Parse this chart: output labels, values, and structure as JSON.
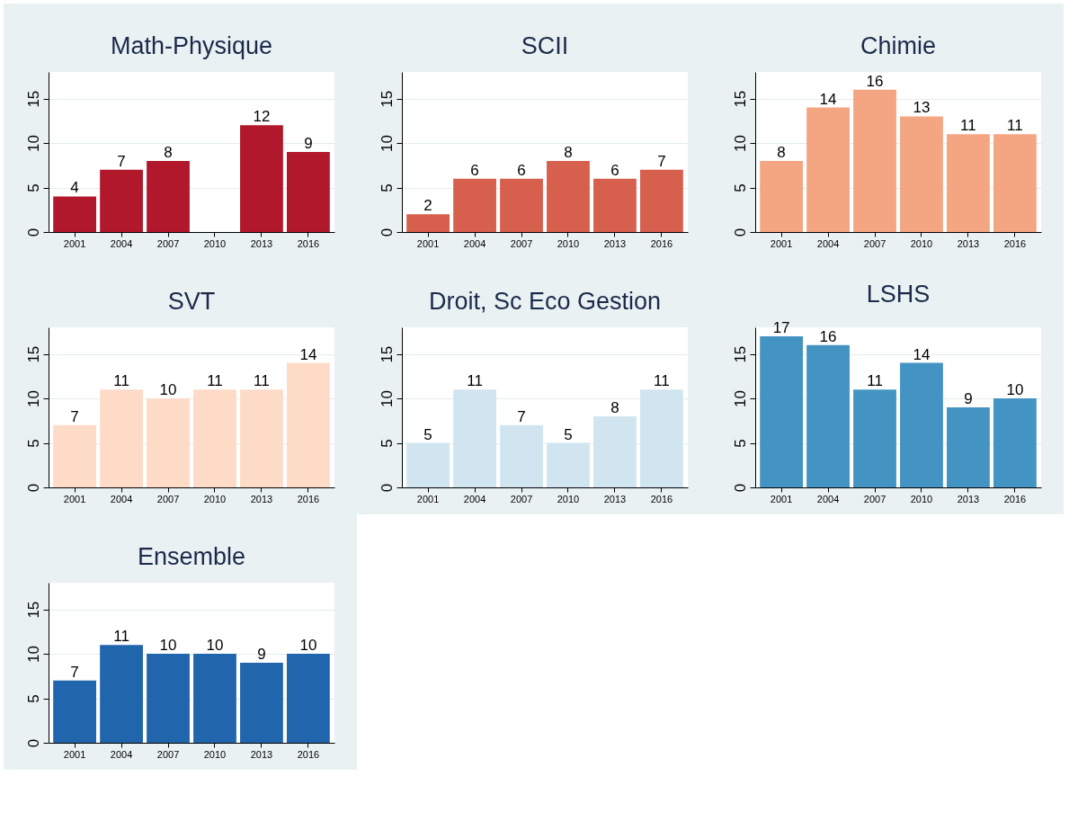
{
  "chart_data": [
    {
      "type": "bar",
      "title": "Math-Physique",
      "categories": [
        "2001",
        "2004",
        "2007",
        "2010",
        "2013",
        "2016"
      ],
      "values": [
        4,
        7,
        8,
        null,
        12,
        9
      ],
      "color": "#b2182b",
      "ylim": [
        0,
        18
      ],
      "yticks": [
        0,
        5,
        10,
        15
      ],
      "grid": "y",
      "data_labels": true
    },
    {
      "type": "bar",
      "title": "SCII",
      "categories": [
        "2001",
        "2004",
        "2007",
        "2010",
        "2013",
        "2016"
      ],
      "values": [
        2,
        6,
        6,
        8,
        6,
        7
      ],
      "color": "#d6604d",
      "ylim": [
        0,
        18
      ],
      "yticks": [
        0,
        5,
        10,
        15
      ],
      "grid": "y",
      "data_labels": true
    },
    {
      "type": "bar",
      "title": "Chimie",
      "categories": [
        "2001",
        "2004",
        "2007",
        "2010",
        "2013",
        "2016"
      ],
      "values": [
        8,
        14,
        16,
        13,
        11,
        11
      ],
      "color": "#f4a582",
      "ylim": [
        0,
        18
      ],
      "yticks": [
        0,
        5,
        10,
        15
      ],
      "grid": "y",
      "data_labels": true
    },
    {
      "type": "bar",
      "title": "SVT",
      "categories": [
        "2001",
        "2004",
        "2007",
        "2010",
        "2013",
        "2016"
      ],
      "values": [
        7,
        11,
        10,
        11,
        11,
        14
      ],
      "color": "#fddbc7",
      "ylim": [
        0,
        18
      ],
      "yticks": [
        0,
        5,
        10,
        15
      ],
      "grid": "y",
      "data_labels": true
    },
    {
      "type": "bar",
      "title": "Droit, Sc Eco Gestion",
      "categories": [
        "2001",
        "2004",
        "2007",
        "2010",
        "2013",
        "2016"
      ],
      "values": [
        5,
        11,
        7,
        5,
        8,
        11
      ],
      "color": "#d1e5f0",
      "ylim": [
        0,
        18
      ],
      "yticks": [
        0,
        5,
        10,
        15
      ],
      "grid": "y",
      "data_labels": true
    },
    {
      "type": "bar",
      "title": "LSHS",
      "categories": [
        "2001",
        "2004",
        "2007",
        "2010",
        "2013",
        "2016"
      ],
      "values": [
        17,
        16,
        11,
        14,
        9,
        10
      ],
      "color": "#4393c3",
      "ylim": [
        0,
        18
      ],
      "yticks": [
        0,
        5,
        10,
        15
      ],
      "grid": "y",
      "data_labels": true
    },
    {
      "type": "bar",
      "title": "Ensemble",
      "categories": [
        "2001",
        "2004",
        "2007",
        "2010",
        "2013",
        "2016"
      ],
      "values": [
        7,
        11,
        10,
        10,
        9,
        10
      ],
      "color": "#2166ac",
      "ylim": [
        0,
        18
      ],
      "yticks": [
        0,
        5,
        10,
        15
      ],
      "grid": "y",
      "data_labels": true
    }
  ]
}
